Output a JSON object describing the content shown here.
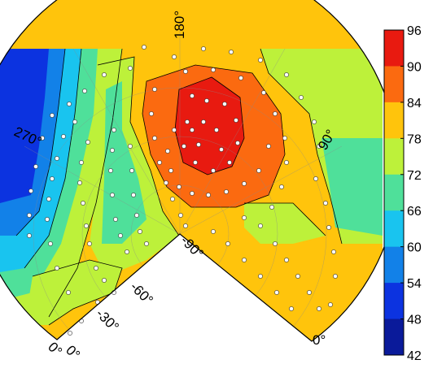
{
  "chart_data": {
    "type": "heatmap",
    "title": "",
    "xlabel": "",
    "ylabel": "",
    "angle_labels": [
      "180°",
      "270°",
      "90°",
      "0°",
      "0°",
      "-30°",
      "-60°",
      "-90°",
      "0°"
    ],
    "colorbar": {
      "ticks": [
        96,
        90,
        84,
        78,
        72,
        66,
        60,
        54,
        48,
        42
      ],
      "range": [
        42,
        96
      ],
      "colors": [
        "#e81a10",
        "#fb6a10",
        "#ffc40c",
        "#bdf13a",
        "#4fe09a",
        "#19c4ef",
        "#1281e8",
        "#0c33e0",
        "#0a1a9a"
      ]
    },
    "grid": true,
    "sample_points": true
  }
}
